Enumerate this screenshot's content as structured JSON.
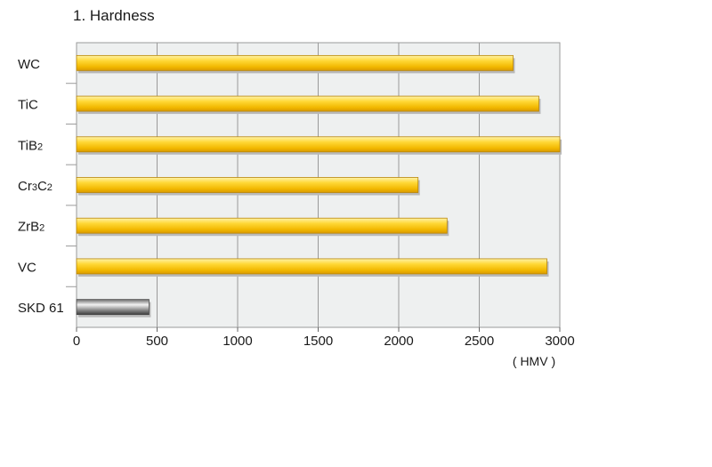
{
  "chart_data": {
    "type": "bar",
    "orientation": "horizontal",
    "title": "1. Hardness",
    "xlabel": "( HMV )",
    "ylabel": "",
    "xlim": [
      0,
      3000
    ],
    "x_ticks": [
      0,
      500,
      1000,
      1500,
      2000,
      2500,
      3000
    ],
    "grid": true,
    "categories": [
      {
        "label": "WC",
        "parts": [
          {
            "t": "WC"
          }
        ]
      },
      {
        "label": "TiC",
        "parts": [
          {
            "t": "TiC"
          }
        ]
      },
      {
        "label": "TiB2",
        "parts": [
          {
            "t": "TiB"
          },
          {
            "t": "2",
            "sub": true
          }
        ]
      },
      {
        "label": "Cr3C2",
        "parts": [
          {
            "t": "Cr"
          },
          {
            "t": "3",
            "sub": true
          },
          {
            "t": "C"
          },
          {
            "t": "2",
            "sub": true
          }
        ]
      },
      {
        "label": "ZrB2",
        "parts": [
          {
            "t": "ZrB"
          },
          {
            "t": "2",
            "sub": true
          }
        ]
      },
      {
        "label": "VC",
        "parts": [
          {
            "t": "VC"
          }
        ]
      },
      {
        "label": "SKD 61",
        "parts": [
          {
            "t": "SKD 61"
          }
        ]
      }
    ],
    "values": [
      2710,
      2870,
      3000,
      2120,
      2300,
      2920,
      450
    ],
    "bar_colors": [
      "#f5c400",
      "#f5c400",
      "#f5c400",
      "#f5c400",
      "#f5c400",
      "#f5c400",
      "#8c8c8c"
    ]
  }
}
